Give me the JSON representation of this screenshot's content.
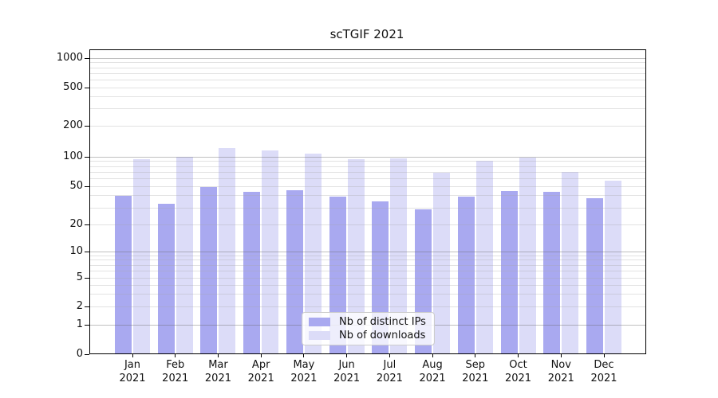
{
  "chart_data": {
    "type": "bar",
    "title": "scTGIF 2021",
    "categories": [
      "Jan 2021",
      "Feb 2021",
      "Mar 2021",
      "Apr 2021",
      "May 2021",
      "Jun 2021",
      "Jul 2021",
      "Aug 2021",
      "Sep 2021",
      "Oct 2021",
      "Nov 2021",
      "Dec 2021"
    ],
    "series": [
      {
        "name": "Nb of distinct IPs",
        "color": "#a9a9f0",
        "values": [
          40,
          33,
          49,
          44,
          46,
          39,
          35,
          29,
          39,
          45,
          44,
          38
        ]
      },
      {
        "name": "Nb of downloads",
        "color": "#dcdcf8",
        "values": [
          95,
          101,
          121,
          115,
          108,
          95,
          97,
          69,
          92,
          99,
          70,
          57
        ]
      }
    ],
    "yscale": "symlog",
    "yticks": [
      0,
      1,
      2,
      5,
      10,
      20,
      50,
      100,
      200,
      500,
      1000
    ],
    "ylim": [
      0,
      1200
    ],
    "xlabel": "",
    "ylabel": "",
    "grid": true,
    "legend_position": "lower center"
  },
  "legend": {
    "items": [
      {
        "label": "Nb of distinct IPs",
        "swatch": "#a9a9f0"
      },
      {
        "label": "Nb of downloads",
        "swatch": "#dcdcf8"
      }
    ]
  },
  "colors": {
    "background": "#ffffff",
    "axis": "#000000",
    "grid_major": "#b8b8b8",
    "grid_minor": "#e8e8e8",
    "bar_distinct_ips": "#a9a9f0",
    "bar_downloads": "#dcdcf8"
  }
}
